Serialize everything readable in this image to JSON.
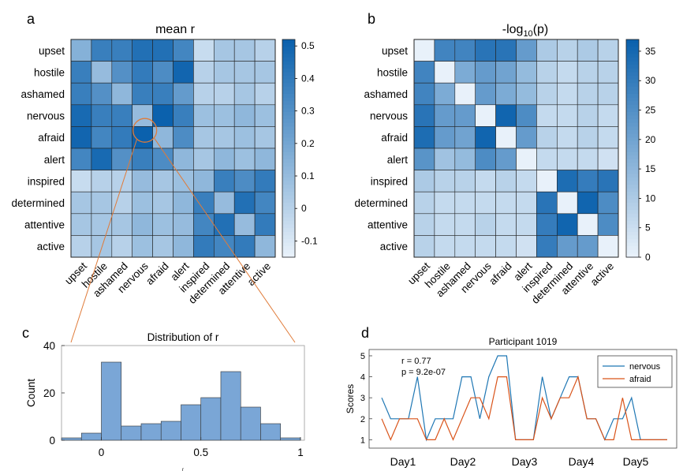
{
  "panels": {
    "a": {
      "letter": "a",
      "title": "mean r"
    },
    "b": {
      "letter": "b",
      "title_main": "-log",
      "title_sub": "10",
      "title_tail": "(p)"
    },
    "c": {
      "letter": "c"
    },
    "d": {
      "letter": "d"
    }
  },
  "colors": {
    "heat_low": "#e8f1fa",
    "heat_high": "#0b61ad",
    "grid": "#222222",
    "hist_fill": "#7aa6d6",
    "line_nervous": "#1f77b4",
    "line_afraid": "#d95319",
    "highlight": "#e07b39"
  },
  "chart_data": [
    {
      "type": "heatmap",
      "title": "mean r",
      "rows": [
        "upset",
        "hostile",
        "ashamed",
        "nervous",
        "afraid",
        "alert",
        "inspired",
        "determined",
        "attentive",
        "active"
      ],
      "cols": [
        "upset",
        "hostile",
        "ashamed",
        "nervous",
        "afraid",
        "alert",
        "inspired",
        "determined",
        "attentive",
        "active"
      ],
      "values": [
        [
          0.15,
          0.38,
          0.38,
          0.45,
          0.45,
          0.35,
          -0.05,
          0.05,
          0.05,
          0.0
        ],
        [
          0.38,
          0.1,
          0.3,
          0.4,
          0.32,
          0.5,
          0.0,
          0.05,
          0.05,
          0.05
        ],
        [
          0.38,
          0.3,
          0.12,
          0.38,
          0.38,
          0.25,
          0.0,
          0.0,
          0.05,
          0.0
        ],
        [
          0.48,
          0.38,
          0.38,
          0.1,
          0.52,
          0.38,
          0.08,
          0.08,
          0.12,
          0.08
        ],
        [
          0.5,
          0.35,
          0.4,
          0.52,
          0.12,
          0.32,
          0.05,
          0.05,
          0.08,
          0.05
        ],
        [
          0.35,
          0.48,
          0.3,
          0.38,
          0.32,
          0.12,
          0.05,
          0.12,
          0.08,
          0.12
        ],
        [
          -0.05,
          0.0,
          0.0,
          0.1,
          0.05,
          0.08,
          0.12,
          0.38,
          0.32,
          0.4
        ],
        [
          0.05,
          0.05,
          0.0,
          0.08,
          0.05,
          0.12,
          0.38,
          0.1,
          0.45,
          0.35
        ],
        [
          0.05,
          0.05,
          0.05,
          0.12,
          0.08,
          0.1,
          0.35,
          0.45,
          0.1,
          0.4
        ],
        [
          0.0,
          0.05,
          0.0,
          0.08,
          0.05,
          0.12,
          0.4,
          0.35,
          0.4,
          0.12
        ]
      ],
      "colorbar_ticks": [
        0.5,
        0.4,
        0.3,
        0.2,
        0.1,
        0,
        -0.1
      ],
      "colorbar_range": [
        -0.15,
        0.52
      ],
      "highlight": {
        "row": "afraid",
        "col": "nervous"
      }
    },
    {
      "type": "heatmap",
      "title": "-log10(p)",
      "rows": [
        "upset",
        "hostile",
        "ashamed",
        "nervous",
        "afraid",
        "alert",
        "inspired",
        "determined",
        "attentive",
        "active"
      ],
      "cols": [
        "upset",
        "hostile",
        "ashamed",
        "nervous",
        "afraid",
        "alert",
        "inspired",
        "determined",
        "attentive",
        "active"
      ],
      "values": [
        [
          0,
          28,
          28,
          32,
          32,
          22,
          10,
          8,
          10,
          8
        ],
        [
          28,
          0,
          18,
          22,
          20,
          14,
          8,
          6,
          8,
          8
        ],
        [
          28,
          18,
          0,
          22,
          18,
          14,
          8,
          6,
          8,
          8
        ],
        [
          32,
          22,
          22,
          0,
          36,
          26,
          6,
          6,
          8,
          6
        ],
        [
          34,
          22,
          20,
          36,
          0,
          22,
          8,
          6,
          8,
          6
        ],
        [
          24,
          12,
          14,
          26,
          22,
          0,
          6,
          6,
          6,
          4
        ],
        [
          10,
          8,
          8,
          6,
          8,
          6,
          0,
          34,
          30,
          32
        ],
        [
          8,
          6,
          6,
          6,
          6,
          6,
          32,
          0,
          36,
          26
        ],
        [
          8,
          6,
          6,
          8,
          6,
          6,
          30,
          36,
          0,
          26
        ],
        [
          8,
          6,
          6,
          6,
          6,
          4,
          30,
          22,
          22,
          0
        ]
      ],
      "colorbar_ticks": [
        35,
        30,
        25,
        20,
        15,
        10,
        5,
        0
      ],
      "colorbar_range": [
        0,
        37
      ]
    },
    {
      "type": "bar",
      "title": "Distribution of r",
      "ylabel": "Count",
      "xlabel": "r",
      "bin_edges": [
        -0.2,
        -0.1,
        0.0,
        0.1,
        0.2,
        0.3,
        0.4,
        0.5,
        0.6,
        0.7,
        0.8,
        0.9,
        1.0
      ],
      "values": [
        1,
        3,
        33,
        6,
        7,
        8,
        15,
        18,
        29,
        14,
        7,
        1
      ],
      "xticks": [
        "0",
        "0.5",
        "1"
      ],
      "yticks": [
        "0",
        "20",
        "40"
      ],
      "ylim": [
        0,
        40
      ],
      "xlim": [
        -0.2,
        1.02
      ]
    },
    {
      "type": "line",
      "title": "Participant 1019",
      "ylabel": "Scores",
      "ylim": [
        0.6,
        5.3
      ],
      "yticks": [
        "1",
        "2",
        "3",
        "4",
        "5"
      ],
      "day_labels": [
        "Day1",
        "Day2",
        "Day3",
        "Day4",
        "Day5"
      ],
      "stats": [
        "r = 0.77",
        "p = 9.2e-07"
      ],
      "series": [
        {
          "name": "nervous",
          "values": [
            3,
            2,
            2,
            2,
            4,
            1,
            2,
            2,
            2,
            4,
            4,
            2,
            4,
            5,
            5,
            1,
            1,
            1,
            4,
            2,
            3,
            4,
            4,
            2,
            2,
            1,
            2,
            2,
            3,
            1,
            1,
            1,
            1
          ]
        },
        {
          "name": "afraid",
          "values": [
            2,
            1,
            2,
            2,
            2,
            1,
            1,
            2,
            1,
            2,
            3,
            3,
            2,
            4,
            4,
            1,
            1,
            1,
            3,
            2,
            3,
            3,
            4,
            2,
            2,
            1,
            1,
            3,
            1,
            1,
            1,
            1,
            1
          ]
        }
      ]
    }
  ]
}
